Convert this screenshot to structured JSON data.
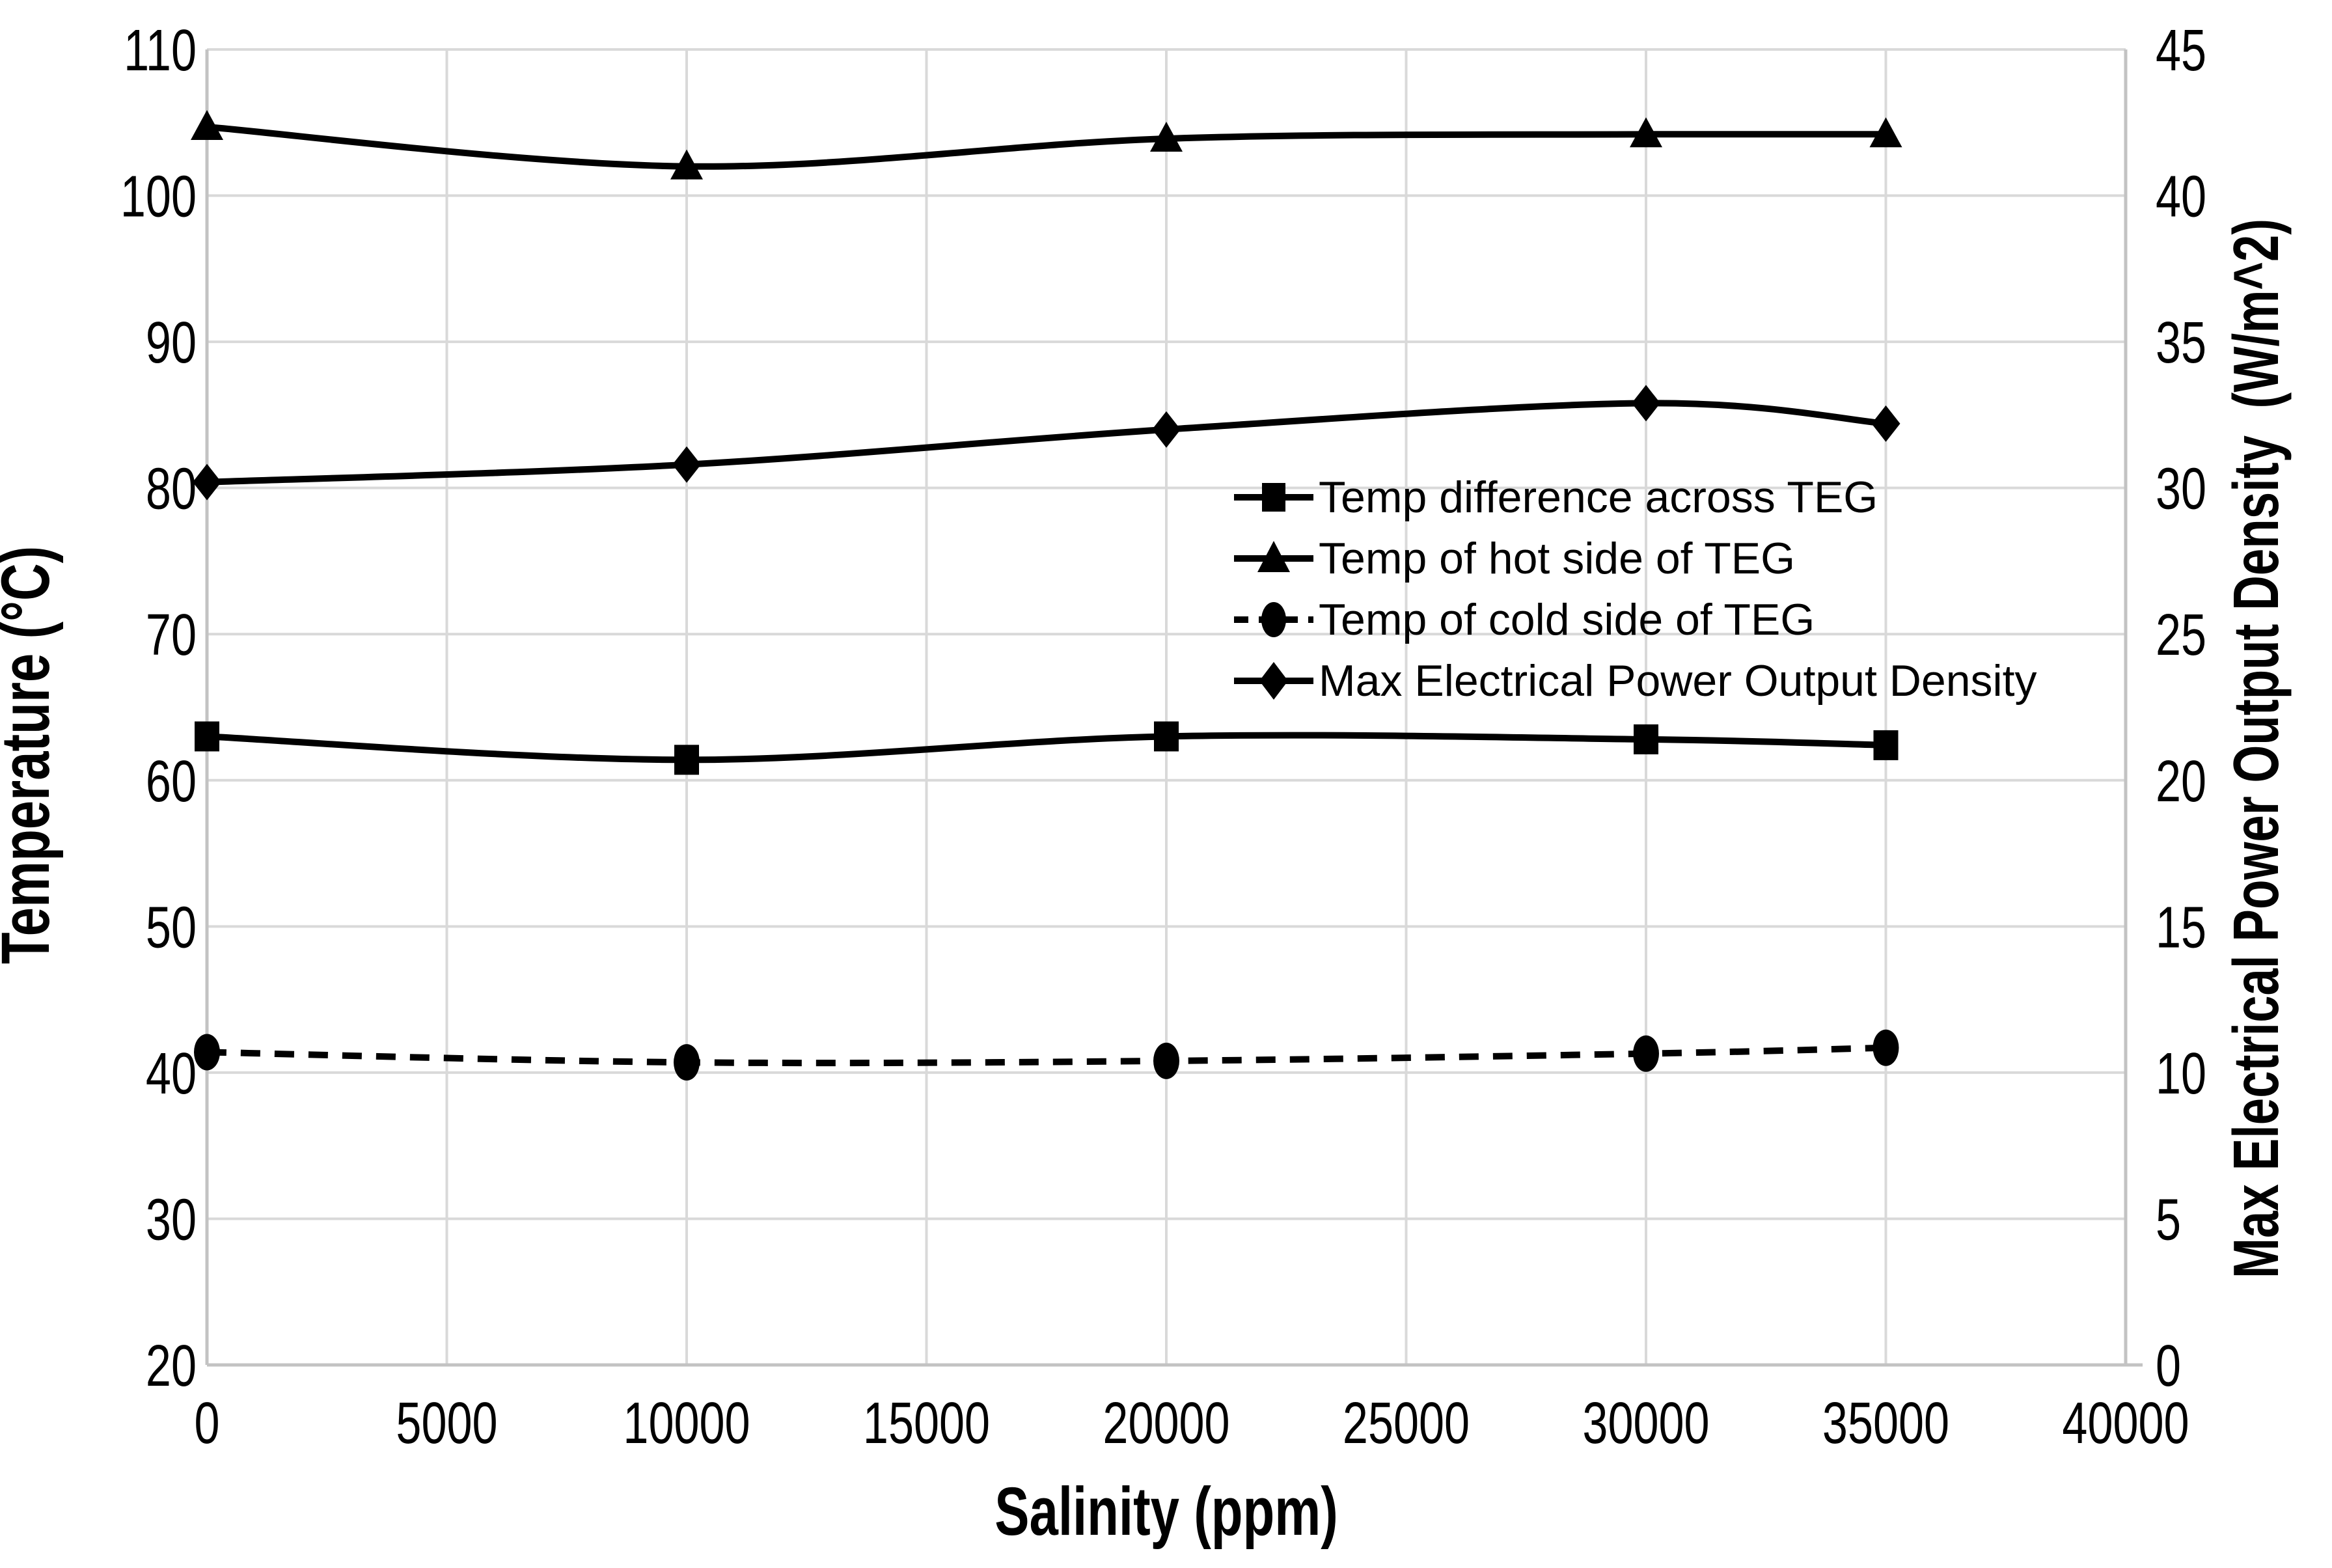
{
  "chart_data": {
    "type": "line",
    "title": "",
    "x_label": "Salinity (ppm)",
    "y_left_label": "Temperature (°C)",
    "y_right_label": "Max Electrical Power Output Density  (W/m^2)",
    "x_range": [
      0,
      40000
    ],
    "y_left_range": [
      20,
      110
    ],
    "y_right_range": [
      0,
      45
    ],
    "x_ticks": [
      0,
      5000,
      10000,
      15000,
      20000,
      25000,
      30000,
      35000,
      40000
    ],
    "y_left_ticks": [
      20,
      30,
      40,
      50,
      60,
      70,
      80,
      90,
      100,
      110
    ],
    "y_right_ticks": [
      0,
      5,
      10,
      15,
      20,
      25,
      30,
      35,
      40,
      45
    ],
    "grid": true,
    "legend_position": "inside-right-middle",
    "x": [
      0,
      10000,
      20000,
      30000,
      35000
    ],
    "series": [
      {
        "name": "Temp difference across TEG",
        "axis": "left",
        "marker": "square",
        "line": "solid",
        "values": [
          63.0,
          61.4,
          63.0,
          62.8,
          62.4
        ]
      },
      {
        "name": "Temp of hot side of TEG",
        "axis": "left",
        "marker": "triangle",
        "line": "solid",
        "values": [
          104.7,
          102.0,
          103.9,
          104.2,
          104.2
        ]
      },
      {
        "name": "Temp of cold side of TEG",
        "axis": "left",
        "marker": "circle",
        "line": "dashed",
        "values": [
          41.4,
          40.7,
          40.8,
          41.3,
          41.7
        ]
      },
      {
        "name": "Max Electrical Power Output Density",
        "axis": "right",
        "marker": "diamond",
        "line": "solid",
        "values": [
          30.2,
          30.8,
          32.0,
          32.9,
          32.2
        ]
      }
    ],
    "colors": {
      "series": "#000000",
      "grid": "#d9d9d9",
      "axis": "#c3c3c3",
      "background": "#ffffff"
    }
  }
}
